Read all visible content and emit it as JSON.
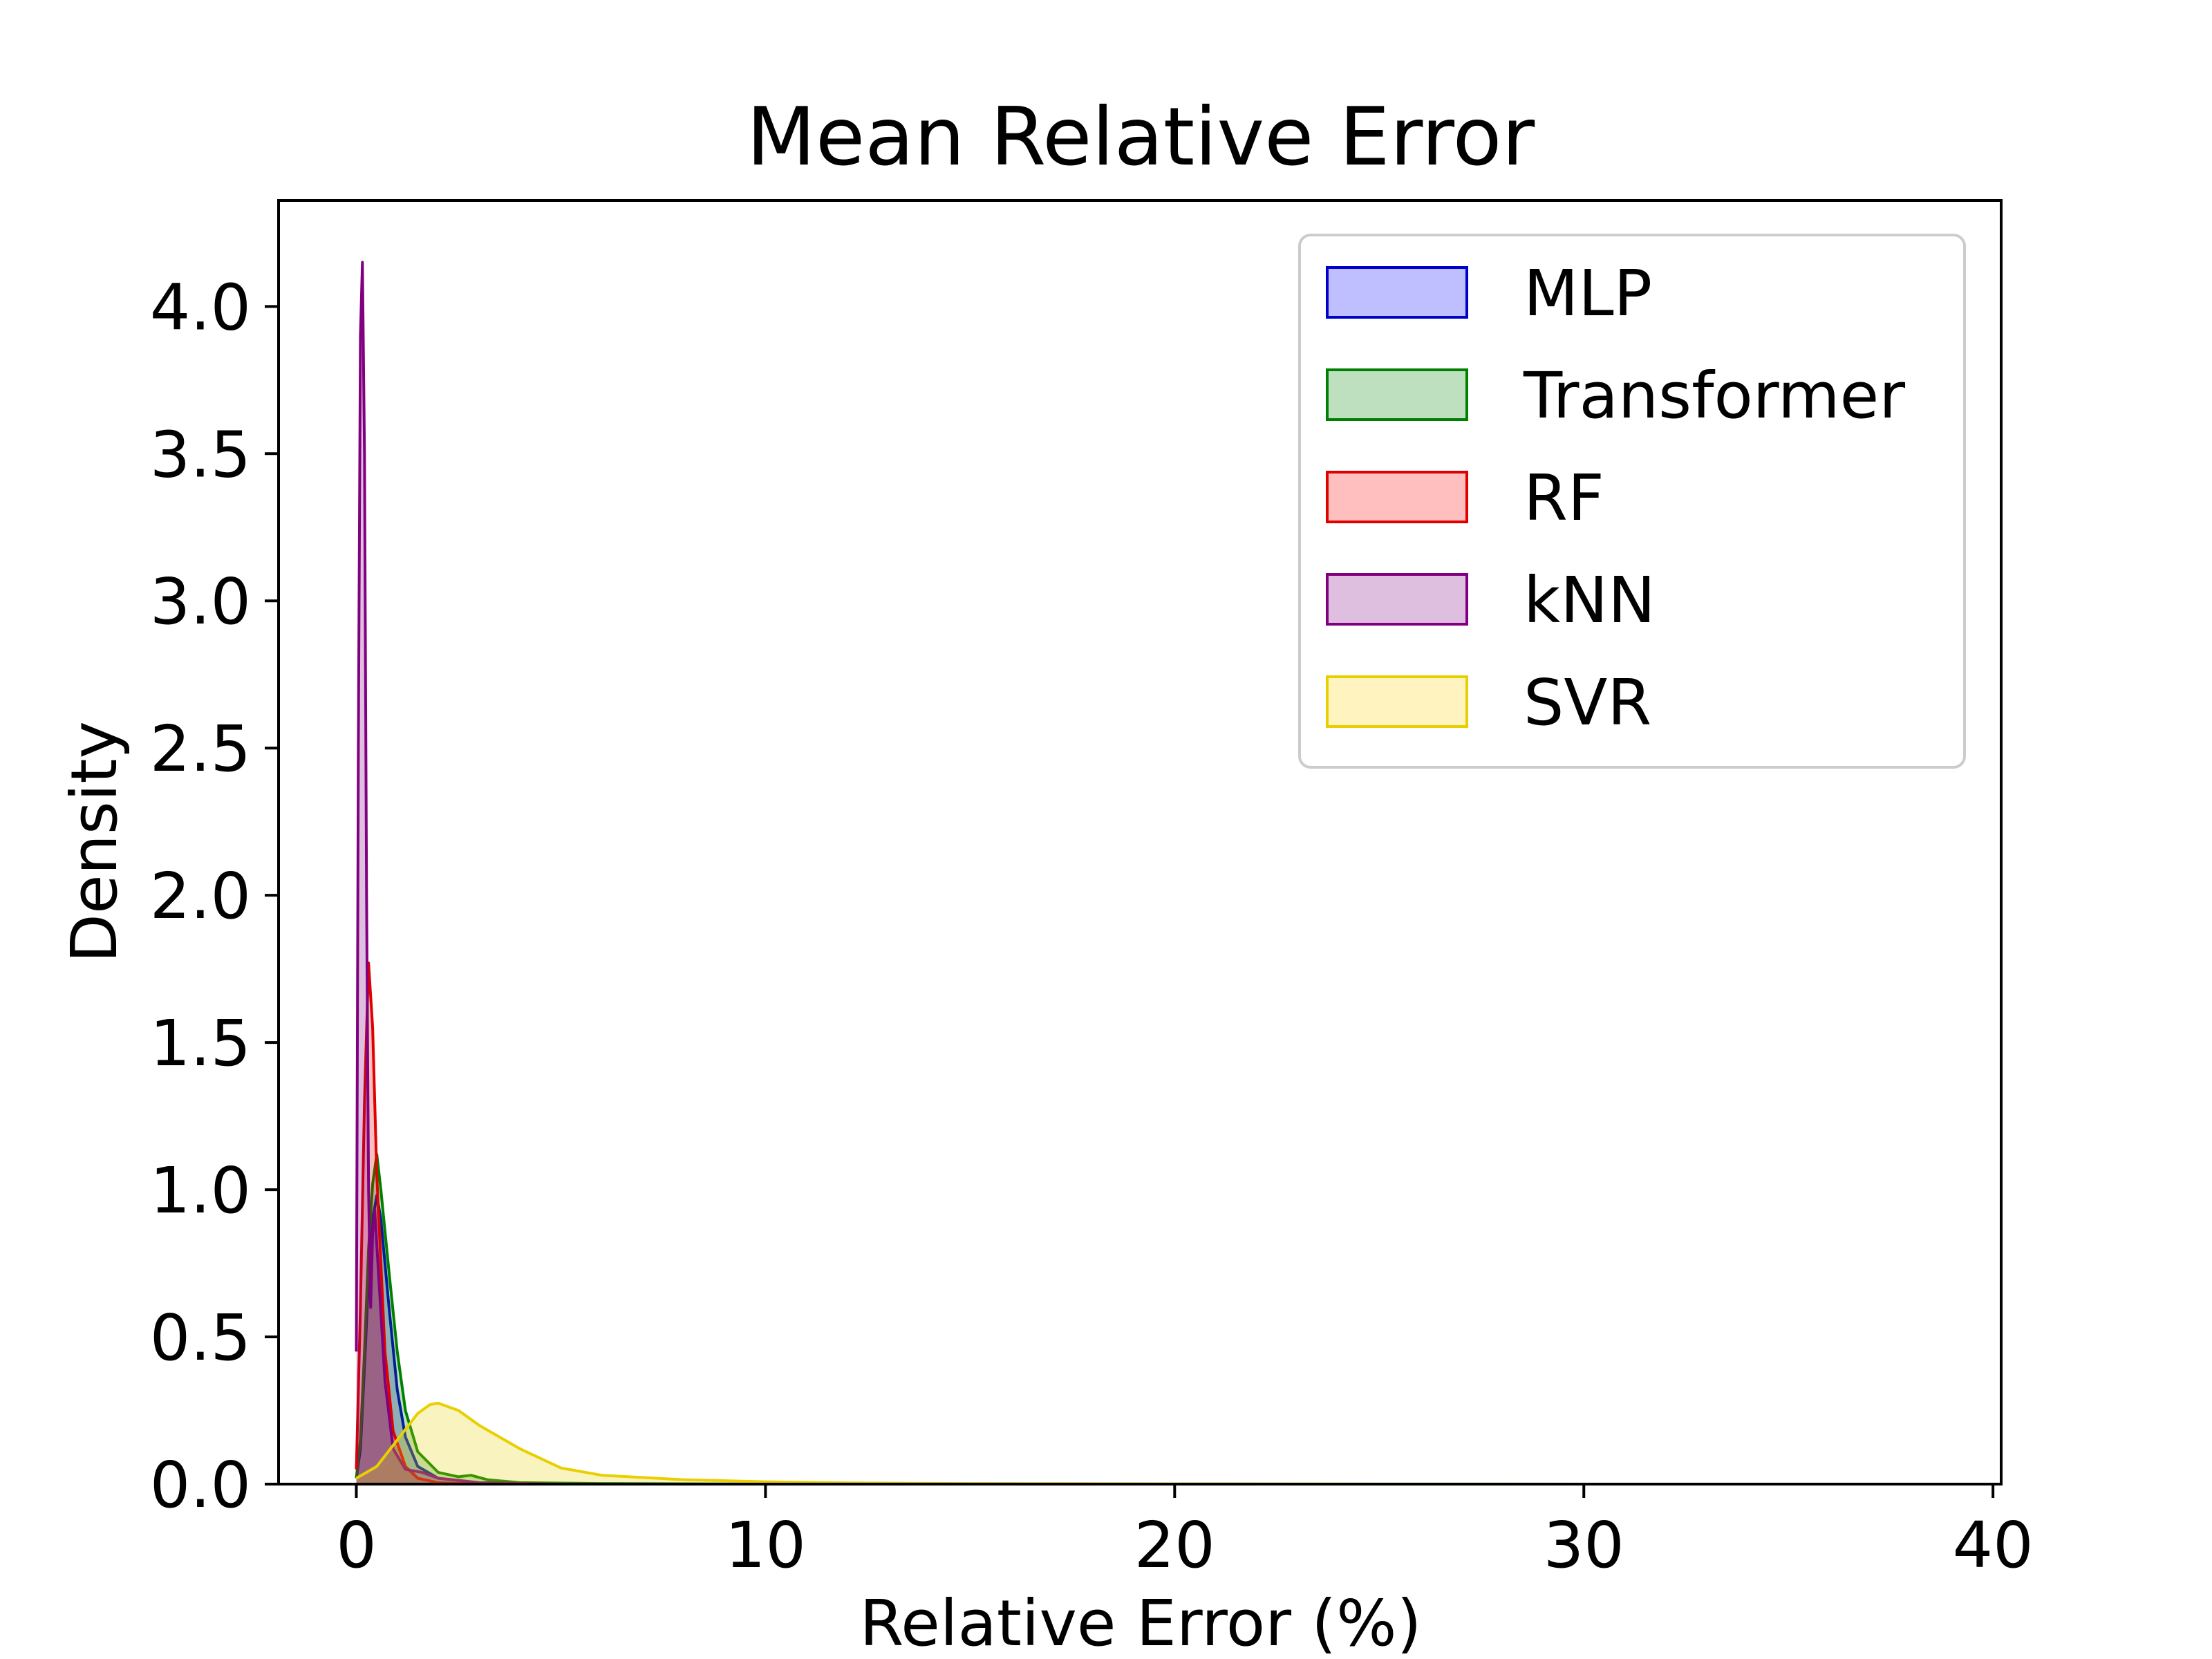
{
  "chart_data": {
    "type": "area",
    "title": "Mean Relative Error",
    "xlabel": "Relative Error (%)",
    "ylabel": "Density",
    "xlim": [
      -1.9,
      40.2
    ],
    "ylim": [
      0,
      4.36
    ],
    "x_ticks": [
      0,
      10,
      20,
      30,
      40
    ],
    "x_tick_labels": [
      "0",
      "10",
      "20",
      "30",
      "40"
    ],
    "y_ticks": [
      0,
      0.5,
      1,
      1.5,
      2,
      2.5,
      3,
      3.5,
      4
    ],
    "y_tick_labels": [
      "0.0",
      "0.5",
      "1.0",
      "1.5",
      "2.0",
      "2.5",
      "3.0",
      "3.5",
      "4.0"
    ],
    "grid": false,
    "legend_position": "top-right",
    "series": [
      {
        "name": "MLP",
        "color": "#0000cc",
        "fill": "#bfbfff",
        "points": [
          [
            0,
            0.02
          ],
          [
            0.1,
            0.12
          ],
          [
            0.2,
            0.4
          ],
          [
            0.3,
            0.7
          ],
          [
            0.4,
            0.9
          ],
          [
            0.5,
            0.98
          ],
          [
            0.6,
            0.9
          ],
          [
            0.8,
            0.6
          ],
          [
            1.0,
            0.32
          ],
          [
            1.2,
            0.16
          ],
          [
            1.5,
            0.06
          ],
          [
            2.0,
            0.02
          ],
          [
            3.0,
            0.005
          ],
          [
            5.0,
            0.0
          ],
          [
            20.0,
            0.0
          ]
        ]
      },
      {
        "name": "Transformer",
        "color": "#008000",
        "fill": "#bfe0bf",
        "points": [
          [
            0,
            0.02
          ],
          [
            0.1,
            0.15
          ],
          [
            0.2,
            0.45
          ],
          [
            0.3,
            0.8
          ],
          [
            0.4,
            1.02
          ],
          [
            0.5,
            1.12
          ],
          [
            0.6,
            1.0
          ],
          [
            0.8,
            0.72
          ],
          [
            1.0,
            0.45
          ],
          [
            1.2,
            0.25
          ],
          [
            1.5,
            0.11
          ],
          [
            2.0,
            0.04
          ],
          [
            2.5,
            0.025
          ],
          [
            2.8,
            0.03
          ],
          [
            3.2,
            0.015
          ],
          [
            4.0,
            0.005
          ],
          [
            6.0,
            0.002
          ],
          [
            10.0,
            0.0
          ],
          [
            20.0,
            0.0
          ]
        ]
      },
      {
        "name": "RF",
        "color": "#e00000",
        "fill": "#ffbfbf",
        "points": [
          [
            0,
            0.05
          ],
          [
            0.1,
            0.6
          ],
          [
            0.2,
            1.3
          ],
          [
            0.3,
            1.77
          ],
          [
            0.4,
            1.55
          ],
          [
            0.5,
            1.05
          ],
          [
            0.7,
            0.45
          ],
          [
            0.9,
            0.18
          ],
          [
            1.2,
            0.06
          ],
          [
            1.5,
            0.02
          ],
          [
            2.0,
            0.005
          ],
          [
            3.0,
            0.0
          ],
          [
            10.0,
            0.0
          ]
        ]
      },
      {
        "name": "kNN",
        "color": "#800080",
        "fill": "#dfbfdf",
        "points": [
          [
            0,
            0.45
          ],
          [
            0.05,
            2.5
          ],
          [
            0.1,
            3.9
          ],
          [
            0.15,
            4.15
          ],
          [
            0.2,
            3.5
          ],
          [
            0.25,
            2.0
          ],
          [
            0.3,
            1.0
          ],
          [
            0.35,
            0.6
          ],
          [
            0.4,
            0.85
          ],
          [
            0.45,
            0.93
          ],
          [
            0.55,
            0.7
          ],
          [
            0.7,
            0.35
          ],
          [
            0.9,
            0.12
          ],
          [
            1.2,
            0.05
          ],
          [
            1.6,
            0.04
          ],
          [
            2.0,
            0.02
          ],
          [
            3.0,
            0.005
          ],
          [
            5.0,
            0.0
          ],
          [
            20.0,
            0.0
          ]
        ]
      },
      {
        "name": "SVR",
        "color": "#e8d000",
        "fill": "#fff3bf",
        "points": [
          [
            0,
            0.02
          ],
          [
            0.5,
            0.06
          ],
          [
            1.0,
            0.15
          ],
          [
            1.5,
            0.24
          ],
          [
            1.8,
            0.27
          ],
          [
            2.0,
            0.275
          ],
          [
            2.5,
            0.25
          ],
          [
            3.0,
            0.2
          ],
          [
            4.0,
            0.12
          ],
          [
            5.0,
            0.055
          ],
          [
            6.0,
            0.03
          ],
          [
            8.0,
            0.015
          ],
          [
            10.0,
            0.008
          ],
          [
            12.0,
            0.004
          ],
          [
            15.0,
            0.002
          ],
          [
            20.0,
            0.001
          ],
          [
            30.0,
            0.0
          ],
          [
            38.6,
            0.0
          ]
        ]
      }
    ]
  }
}
